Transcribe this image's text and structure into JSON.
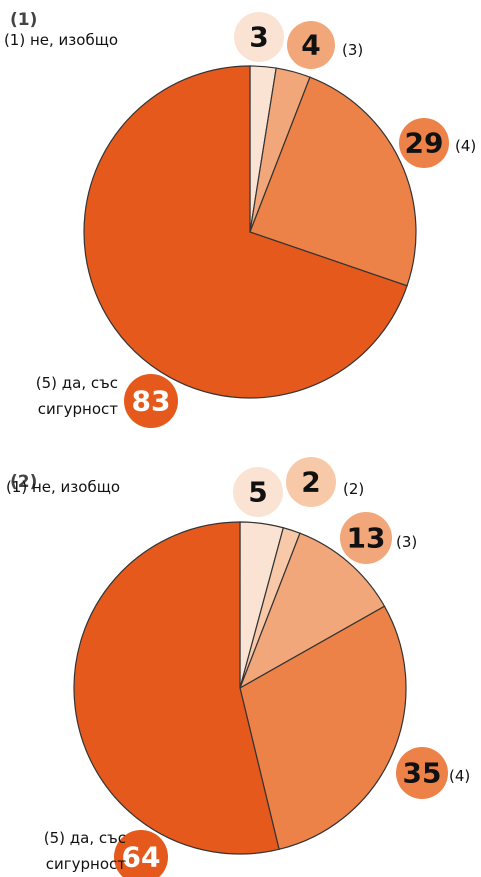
{
  "chart_data": [
    {
      "type": "pie",
      "title": "(1)",
      "categories": [
        "(1) не, изобщо",
        "(3)",
        "(4)",
        "(5) да, със сигурност"
      ],
      "values": [
        3,
        4,
        29,
        83
      ],
      "colors": [
        "#fbe3d4",
        "#f2a77a",
        "#ed8249",
        "#e55a1c"
      ]
    },
    {
      "type": "pie",
      "title": "(2)",
      "categories": [
        "(1) не, изобщо",
        "(2)",
        "(3)",
        "(4)",
        "(5) да, със сигурност"
      ],
      "values": [
        5,
        2,
        13,
        35,
        64
      ],
      "colors": [
        "#fbe3d4",
        "#f8c9a8",
        "#f2a77a",
        "#ed8249",
        "#e55a1c"
      ]
    }
  ]
}
